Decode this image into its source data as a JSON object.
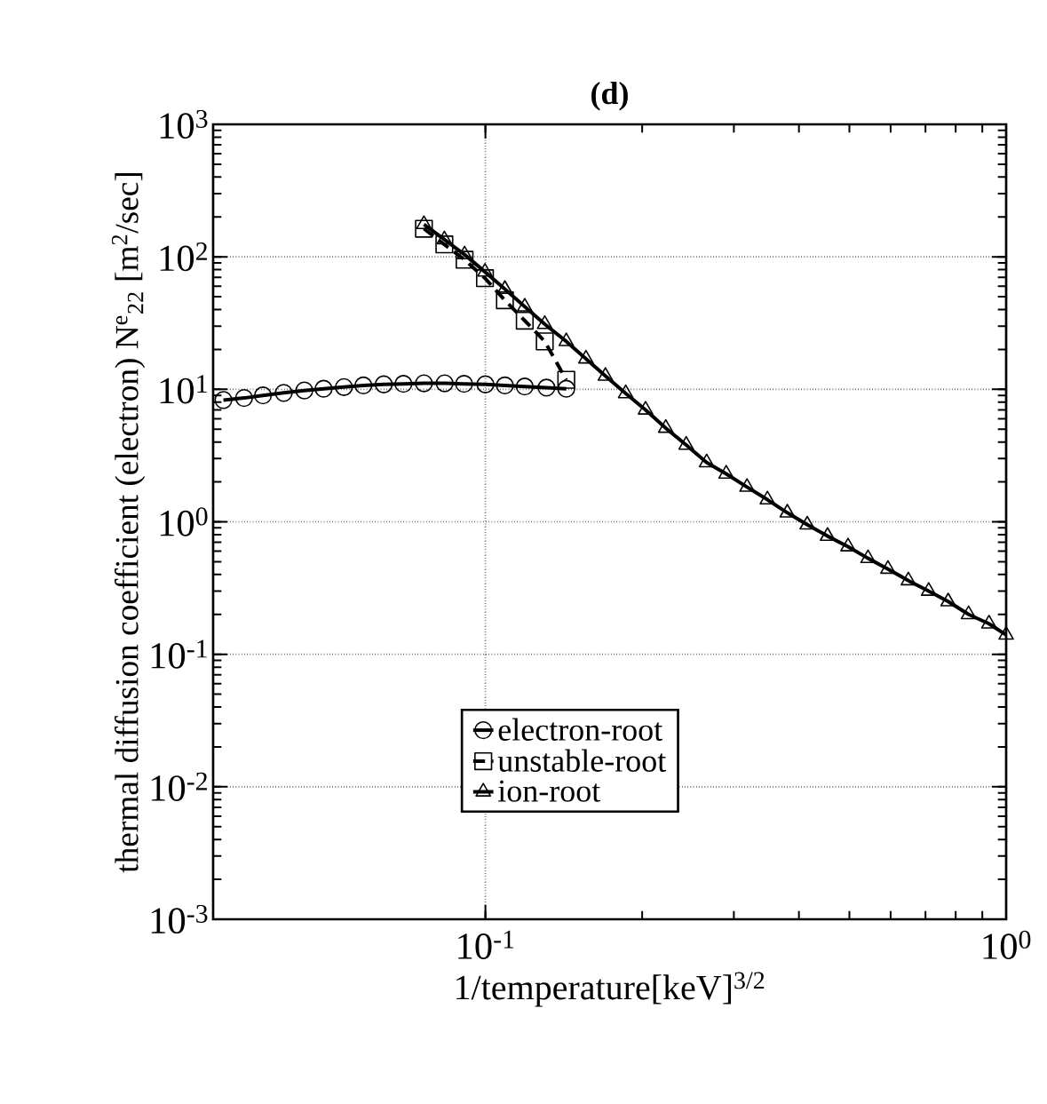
{
  "chart_data": {
    "type": "line",
    "title": "(d)",
    "xlabel": "1/temperature[keV]$^{3/2}$",
    "ylabel": "thermal diffusion coefficient (electron)  N$^{e}$$_{22}$ [m$^{2}$/sec]",
    "log": "xy",
    "grid": true,
    "legend": "bottom",
    "xlim": [
      0.03,
      1
    ],
    "ylim": [
      0.001,
      1000
    ],
    "xticks": [
      {
        "value": 0.1,
        "label": "10$^{-1}$"
      },
      {
        "value": 1,
        "label": "10$^{0}$"
      }
    ],
    "yticks": [
      {
        "value": 0.001,
        "label": "10$^{-3}$"
      },
      {
        "value": 0.01,
        "label": "10$^{-2}$"
      },
      {
        "value": 0.1,
        "label": "10$^{-1}$"
      },
      {
        "value": 1,
        "label": "10$^{0}$"
      },
      {
        "value": 10,
        "label": "10$^{1}$"
      },
      {
        "value": 100,
        "label": "10$^{2}$"
      },
      {
        "value": 1000,
        "label": "10$^{3}$"
      }
    ],
    "series": [
      {
        "name": "electron-root",
        "color": "#000000",
        "marker": "circle",
        "line_style": "solid",
        "x": [
          0.0314,
          0.0344,
          0.0374,
          0.041,
          0.0449,
          0.0489,
          0.0535,
          0.0583,
          0.0638,
          0.0696,
          0.0762,
          0.0835,
          0.091,
          0.1,
          0.109,
          0.119,
          0.131,
          0.143
        ],
        "values": [
          8.3,
          8.6,
          9.0,
          9.4,
          9.8,
          10.1,
          10.4,
          10.7,
          10.9,
          11.0,
          11.1,
          11.1,
          11.0,
          10.9,
          10.7,
          10.5,
          10.3,
          10.1
        ]
      },
      {
        "name": "unstable-root",
        "color": "#000000",
        "marker": "square",
        "line_style": "dashed",
        "x": [
          0.0762,
          0.0834,
          0.0912,
          0.0998,
          0.109,
          0.119,
          0.13,
          0.143
        ],
        "values": [
          163,
          124,
          95,
          69,
          47,
          33,
          23,
          11.8
        ]
      },
      {
        "name": "ion-root",
        "color": "#000000",
        "marker": "triangle",
        "line_style": "solid",
        "x": [
          0.0762,
          0.0834,
          0.0912,
          0.0998,
          0.109,
          0.119,
          0.13,
          0.143,
          0.156,
          0.17,
          0.186,
          0.203,
          0.222,
          0.243,
          0.266,
          0.29,
          0.318,
          0.348,
          0.38,
          0.415,
          0.454,
          0.497,
          0.543,
          0.593,
          0.649,
          0.71,
          0.774,
          0.847,
          0.927,
          1.0
        ],
        "values": [
          176,
          135,
          104,
          77,
          57,
          42,
          31,
          23,
          17,
          12.6,
          9.3,
          7.0,
          5.1,
          3.8,
          2.8,
          2.3,
          1.83,
          1.47,
          1.17,
          0.95,
          0.78,
          0.65,
          0.53,
          0.44,
          0.36,
          0.3,
          0.25,
          0.2,
          0.17,
          0.14
        ]
      }
    ]
  }
}
